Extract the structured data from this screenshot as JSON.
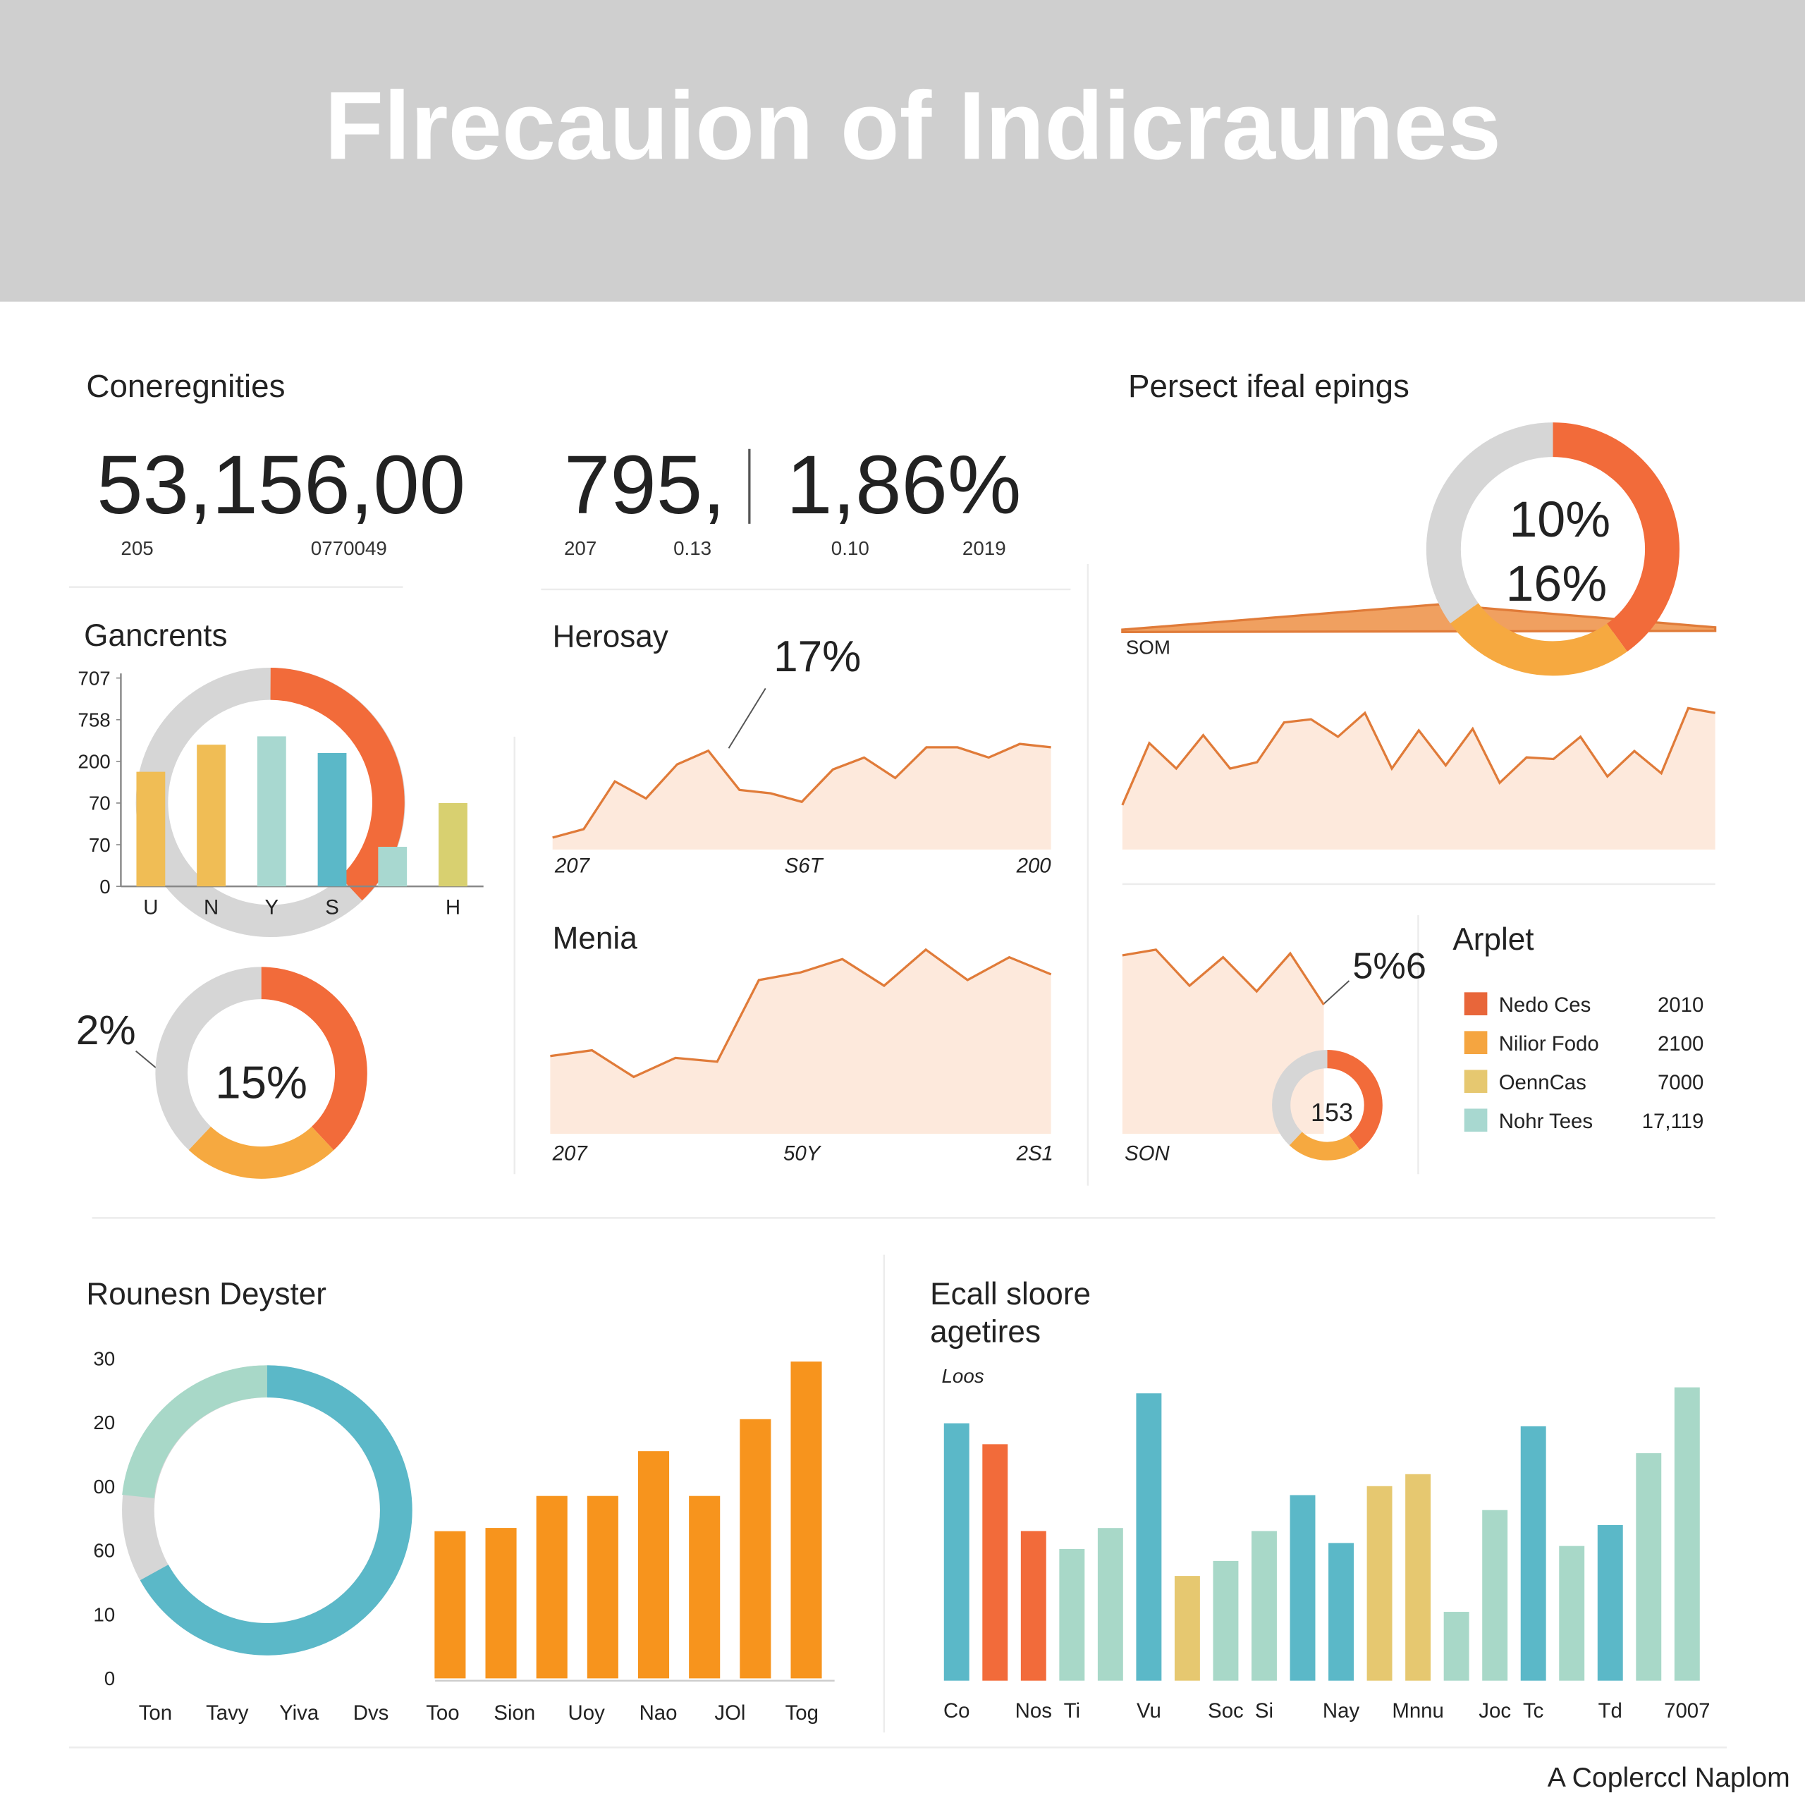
{
  "header": {
    "title": "Flrecauion of Indicraunes",
    "section": "Coneregnities",
    "section2": "Persect ifeal epings",
    "kpis": [
      "53,156,00",
      "795,",
      "1,86%"
    ],
    "kpi_notes": [
      "205",
      "0770049",
      "207",
      "0.13",
      "0.10",
      "2019"
    ]
  },
  "footer": "A Coplerccl Naplom",
  "chart_data": [
    {
      "type": "bar",
      "title": "Gancrents",
      "categories": [
        "U",
        "N",
        "Y",
        "S",
        null,
        "H"
      ],
      "values": [
        55,
        68,
        72,
        64,
        19,
        40
      ],
      "colors": [
        "#f0bd55",
        "#f0bd55",
        "#a8d8d0",
        "#5bb8c8",
        "#a8d8d0",
        "#d8d070"
      ],
      "ylim": [
        0,
        100
      ],
      "yticks": [
        0,
        {
          "value": 20,
          "label": "70"
        },
        {
          "value": 40,
          "label": "70"
        },
        {
          "value": 60,
          "label": "200"
        },
        {
          "value": 80,
          "label": "758"
        },
        {
          "value": 100,
          "label": "707"
        }
      ]
    },
    {
      "type": "donut",
      "annotations": [
        "2%",
        "15%"
      ],
      "values": [
        38,
        24,
        38
      ],
      "colors": [
        "#f26b3a",
        "#f6a940",
        "#d6d6d6"
      ]
    },
    {
      "type": "area",
      "title": "Herosay",
      "annotations": [
        "17%"
      ],
      "categories": [
        "207",
        null,
        null,
        null,
        null,
        null,
        null,
        null,
        "S6T",
        null,
        null,
        null,
        null,
        null,
        null,
        null,
        "200"
      ],
      "values": [
        7,
        12,
        40,
        30,
        50,
        58,
        35,
        33,
        28,
        47,
        54,
        42,
        60,
        60,
        54,
        62,
        60
      ],
      "ylim": [
        0,
        100
      ],
      "color": "#e07b39"
    },
    {
      "type": "area",
      "title": "Menia",
      "categories": [
        "207",
        null,
        null,
        null,
        null,
        null,
        "50Y",
        null,
        null,
        null,
        null,
        null,
        "2S1"
      ],
      "values": [
        41,
        44,
        30,
        40,
        38,
        81,
        85,
        92,
        78,
        97,
        81,
        93,
        84
      ],
      "ylim": [
        0,
        100
      ],
      "color": "#e07b39"
    },
    {
      "type": "donut",
      "annotations": [
        "10%",
        "16%",
        "SOM"
      ],
      "values": [
        40,
        25,
        35
      ],
      "colors": [
        "#f26b3a",
        "#f6a940",
        "#d6d6d6"
      ]
    },
    {
      "type": "area",
      "values": [
        28,
        67,
        51,
        72,
        51,
        55,
        80,
        82,
        71,
        86,
        51,
        75,
        53,
        76,
        42,
        58,
        57,
        71,
        46,
        62,
        48,
        89,
        86
      ],
      "ylim": [
        0,
        100
      ],
      "color": "#e07b39"
    },
    {
      "type": "area",
      "annotations": [
        "5%6"
      ],
      "categories": [
        "SON",
        null,
        null,
        null,
        null,
        null,
        null
      ],
      "values": [
        94,
        97,
        78,
        93,
        75,
        95,
        68
      ],
      "ylim": [
        0,
        100
      ],
      "color": "#e07b39"
    },
    {
      "type": "donut",
      "annotations": [
        "153"
      ],
      "values": [
        40,
        22,
        38
      ],
      "colors": [
        "#f26b3a",
        "#f6a940",
        "#d6d6d6"
      ]
    },
    {
      "type": "legend",
      "title": "Arplet",
      "items": [
        {
          "name": "Nedo Ces",
          "value": "2010",
          "color": "#e8663a"
        },
        {
          "name": "Nilior Fodo",
          "value": "2100",
          "color": "#f5a540"
        },
        {
          "name": "OennCas",
          "value": "7000",
          "color": "#e6c870"
        },
        {
          "name": "Nohr Tees",
          "value": "17,119",
          "color": "#a8d8d0"
        }
      ]
    },
    {
      "type": "bar",
      "title": "Rounesn Deyster",
      "categories": [
        "Ton",
        "Tavy",
        "Yiva",
        "Dvs",
        "Too",
        "Sion",
        "Uoy",
        "Nao",
        "JOl",
        "Tog"
      ],
      "values": [
        null,
        null,
        46,
        47,
        57,
        57,
        71,
        57,
        81,
        99
      ],
      "color": "#f7941d",
      "ylim": [
        0,
        100
      ],
      "yticks": [
        0,
        {
          "value": 20,
          "label": "10"
        },
        {
          "value": 40,
          "label": "60"
        },
        {
          "value": 60,
          "label": "00"
        },
        {
          "value": 80,
          "label": "20"
        },
        {
          "value": 100,
          "label": "30"
        }
      ]
    },
    {
      "type": "bar",
      "title": [
        "Ecall sloore",
        "agetires"
      ],
      "ylabel": "Loos",
      "categories": [
        "Co",
        null,
        "Nos",
        "Ti",
        null,
        "Vu",
        null,
        "Soc",
        "Si",
        null,
        "Nay",
        null,
        "Mnnu",
        null,
        "Joc",
        "Tc",
        null,
        "Td",
        null,
        "7007"
      ],
      "values": [
        86,
        79,
        50,
        44,
        51,
        96,
        35,
        40,
        50,
        62,
        46,
        65,
        69,
        23,
        57,
        85,
        45,
        52,
        76,
        98
      ],
      "colors": [
        "#5bb8c8",
        "#f26b3a",
        "#f26b3a",
        "#a8d8c8",
        "#a8d8c8",
        "#5bb8c8",
        "#e6c870",
        "#a8d8c8",
        "#a8d8c8",
        "#5bb8c8",
        "#5bb8c8",
        "#e6c870",
        "#e6c870",
        "#a8d8c8",
        "#a8d8c8",
        "#5bb8c8",
        "#a8d8c8",
        "#5bb8c8",
        "#a8d8c8",
        "#a8d8c8"
      ],
      "ylim": [
        0,
        100
      ]
    }
  ]
}
